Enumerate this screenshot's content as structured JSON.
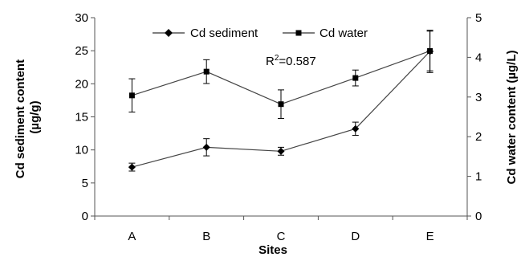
{
  "chart_data": {
    "type": "line",
    "categories": [
      "A",
      "B",
      "C",
      "D",
      "E"
    ],
    "xlabel": "Sites",
    "ylabel_left": [
      "Cd sediment content",
      "(µg/g)"
    ],
    "ylabel_right": "Cd water content (µg/L)",
    "ylim_left": [
      0,
      30
    ],
    "yticks_left": [
      0,
      5,
      10,
      15,
      20,
      25,
      30
    ],
    "ylim_right": [
      0,
      5
    ],
    "yticks_right": [
      0,
      1,
      2,
      3,
      4,
      5
    ],
    "grid": false,
    "legend": "top-center",
    "annotation": {
      "r2_prefix": "R",
      "r2_exp": "2",
      "r2_value": "=0.587"
    },
    "series": [
      {
        "name": "Cd sediment",
        "axis": "left",
        "marker": "diamond",
        "values": [
          7.4,
          10.4,
          9.8,
          13.2,
          24.9
        ],
        "errors": [
          0.6,
          1.3,
          0.6,
          1.0,
          3.2
        ]
      },
      {
        "name": "Cd water",
        "axis": "right",
        "marker": "square",
        "values": [
          3.04,
          3.64,
          2.82,
          3.48,
          4.16
        ],
        "errors": [
          0.42,
          0.3,
          0.36,
          0.2,
          0.5
        ]
      }
    ]
  }
}
